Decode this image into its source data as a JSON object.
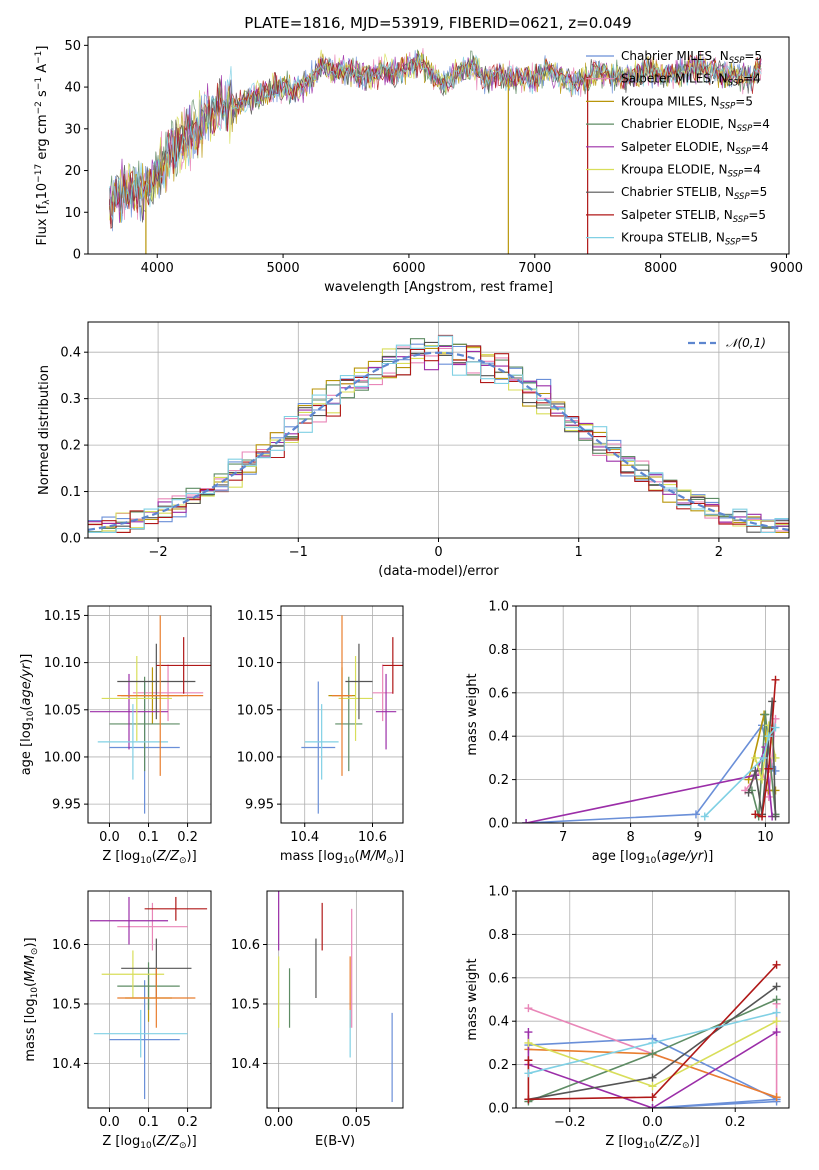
{
  "figure_title": "PLATE=1816, MJD=53919, FIBERID=0621, z=0.049",
  "palette": [
    "#6a8fd8",
    "#e986b8",
    "#b8960a",
    "#5e8c64",
    "#9b2ea8",
    "#d8de5a",
    "#555555",
    "#b01818",
    "#80d0e4",
    "#e87e2e"
  ],
  "chart_data": [
    {
      "id": "spectrum",
      "type": "line",
      "title": "PLATE=1816, MJD=53919, FIBERID=0621, z=0.049",
      "xlabel": "wavelength [Angstrom, rest frame]",
      "ylabel": "Flux [f_λ 10^-17 erg cm^-2 s^-1 A^-1]",
      "xlim": [
        3450,
        9020
      ],
      "ylim": [
        0,
        52
      ],
      "xticks": [
        4000,
        5000,
        6000,
        7000,
        8000,
        9000
      ],
      "yticks": [
        0,
        10,
        20,
        30,
        40,
        50
      ],
      "grid": false,
      "legend_position": "right",
      "x": [
        3620,
        3700,
        3800,
        3900,
        4000,
        4100,
        4200,
        4300,
        4400,
        4500,
        4600,
        4700,
        4800,
        4900,
        5000,
        5100,
        5200,
        5300,
        5400,
        5500,
        5600,
        5700,
        5800,
        5900,
        6000,
        6100,
        6200,
        6300,
        6400,
        6500,
        6600,
        6700,
        6800,
        6900,
        7000,
        7100,
        7200,
        7300,
        7400,
        7500,
        7600,
        7700,
        7800,
        7900,
        8000,
        8100,
        8200,
        8300,
        8400,
        8500,
        8600,
        8700,
        8800
      ],
      "y": [
        12,
        14,
        15,
        15,
        19,
        23,
        27,
        29,
        33,
        35,
        35,
        37,
        38,
        39,
        40,
        39,
        41,
        45,
        44,
        44,
        43,
        43,
        44,
        43,
        45,
        46,
        42,
        41,
        44,
        45,
        42,
        43,
        42,
        42,
        42,
        44,
        43,
        41,
        42,
        44,
        43,
        42,
        43,
        44,
        43,
        43,
        44,
        45,
        44,
        43,
        43,
        42,
        45
      ],
      "series": [
        {
          "name": "Chabrier MILES, N_SSP=5",
          "color": "#6a8fd8"
        },
        {
          "name": "Salpeter MILES, N_SSP=4",
          "color": "#e986b8"
        },
        {
          "name": "Kroupa MILES, N_SSP=5",
          "color": "#b8960a"
        },
        {
          "name": "Chabrier ELODIE, N_SSP=4",
          "color": "#5e8c64"
        },
        {
          "name": "Salpeter ELODIE, N_SSP=4",
          "color": "#9b2ea8"
        },
        {
          "name": "Kroupa ELODIE, N_SSP=4",
          "color": "#d8de5a"
        },
        {
          "name": "Chabrier STELIB, N_SSP=5",
          "color": "#555555"
        },
        {
          "name": "Salpeter STELIB, N_SSP=5",
          "color": "#b01818"
        },
        {
          "name": "Kroupa STELIB, N_SSP=5",
          "color": "#80d0e4"
        }
      ],
      "dropouts": [
        {
          "x": 3910,
          "color": "#b8960a"
        },
        {
          "x": 6790,
          "color": "#b8960a"
        },
        {
          "x": 7420,
          "color": "#b01818"
        }
      ]
    },
    {
      "id": "residuals",
      "type": "step",
      "xlabel": "(data-model)/error",
      "ylabel": "Normed distribution",
      "xlim": [
        -2.5,
        2.5
      ],
      "ylim": [
        0,
        0.465
      ],
      "xticks": [
        -2,
        -1,
        0,
        1,
        2
      ],
      "yticks": [
        0.0,
        0.1,
        0.2,
        0.3,
        0.4
      ],
      "grid": true,
      "legend_position": "top-right",
      "gaussian": {
        "name": "𝒩(0,1)",
        "mean": 0,
        "sigma": 1,
        "color": "#5d86cf"
      },
      "bin_width": 0.1,
      "series_colors": [
        "#6a8fd8",
        "#e986b8",
        "#b8960a",
        "#5e8c64",
        "#9b2ea8",
        "#d8de5a",
        "#555555",
        "#b01818",
        "#80d0e4"
      ]
    },
    {
      "id": "age-vs-z",
      "type": "errorbar",
      "xlabel": "Z [log10(Z/Z⊙)]",
      "ylabel": "age  [log10(age/yr)]",
      "xlim": [
        -0.055,
        0.26
      ],
      "ylim": [
        9.93,
        10.16
      ],
      "xticks": [
        0.0,
        0.1,
        0.2
      ],
      "yticks": [
        9.95,
        10.0,
        10.05,
        10.1,
        10.15
      ],
      "grid": true,
      "points": [
        {
          "x": 0.09,
          "xerr": 0.09,
          "y": 10.01,
          "yerr": 0.07,
          "color": "#6a8fd8"
        },
        {
          "x": 0.15,
          "xerr": 0.09,
          "y": 10.068,
          "yerr": 0.03,
          "color": "#e986b8"
        },
        {
          "x": 0.11,
          "xerr": 0.08,
          "y": 10.065,
          "yerr": 0.03,
          "color": "#b8960a"
        },
        {
          "x": 0.09,
          "xerr": 0.09,
          "y": 10.035,
          "yerr": 0.05,
          "color": "#5e8c64"
        },
        {
          "x": 0.05,
          "xerr": 0.1,
          "y": 10.048,
          "yerr": 0.04,
          "color": "#9b2ea8"
        },
        {
          "x": 0.07,
          "xerr": 0.09,
          "y": 10.062,
          "yerr": 0.045,
          "color": "#d8de5a"
        },
        {
          "x": 0.12,
          "xerr": 0.1,
          "y": 10.08,
          "yerr": 0.04,
          "color": "#555555"
        },
        {
          "x": 0.19,
          "xerr": 0.07,
          "y": 10.097,
          "yerr": 0.03,
          "color": "#b01818"
        },
        {
          "x": 0.06,
          "xerr": 0.09,
          "y": 10.016,
          "yerr": 0.04,
          "color": "#80d0e4"
        },
        {
          "x": 0.13,
          "xerr": 0.11,
          "y": 10.065,
          "yerr": 0.085,
          "color": "#e87e2e"
        }
      ]
    },
    {
      "id": "age-vs-mass",
      "type": "errorbar",
      "xlabel": "mass [log10(M/M⊙)]",
      "ylabel": "",
      "xlim": [
        10.33,
        10.69
      ],
      "ylim": [
        9.93,
        10.16
      ],
      "xticks": [
        10.4,
        10.6
      ],
      "yticks": [
        9.95,
        10.0,
        10.05,
        10.1,
        10.15
      ],
      "grid": true,
      "points": [
        {
          "x": 10.44,
          "xerr": 0.05,
          "y": 10.01,
          "yerr": 0.07,
          "color": "#6a8fd8"
        },
        {
          "x": 10.63,
          "xerr": 0.03,
          "y": 10.068,
          "yerr": 0.03,
          "color": "#e986b8"
        },
        {
          "x": 10.51,
          "xerr": 0.04,
          "y": 10.065,
          "yerr": 0.03,
          "color": "#b8960a"
        },
        {
          "x": 10.53,
          "xerr": 0.04,
          "y": 10.035,
          "yerr": 0.05,
          "color": "#5e8c64"
        },
        {
          "x": 10.64,
          "xerr": 0.03,
          "y": 10.048,
          "yerr": 0.04,
          "color": "#9b2ea8"
        },
        {
          "x": 10.55,
          "xerr": 0.05,
          "y": 10.062,
          "yerr": 0.045,
          "color": "#d8de5a"
        },
        {
          "x": 10.56,
          "xerr": 0.04,
          "y": 10.08,
          "yerr": 0.04,
          "color": "#555555"
        },
        {
          "x": 10.66,
          "xerr": 0.03,
          "y": 10.097,
          "yerr": 0.03,
          "color": "#b01818"
        },
        {
          "x": 10.45,
          "xerr": 0.05,
          "y": 10.016,
          "yerr": 0.04,
          "color": "#80d0e4"
        },
        {
          "x": 10.51,
          "xerr": 0.03,
          "y": 10.065,
          "yerr": 0.085,
          "color": "#e87e2e"
        }
      ]
    },
    {
      "id": "weight-vs-age",
      "type": "line",
      "xlabel": "age  [log10(age/yr)]",
      "ylabel": "mass weight",
      "xlim": [
        6.3,
        10.35
      ],
      "ylim": [
        0,
        1
      ],
      "xticks": [
        7,
        8,
        9,
        10
      ],
      "yticks": [
        0.0,
        0.2,
        0.4,
        0.6,
        0.8,
        1.0
      ],
      "grid": true,
      "series": [
        {
          "color": "#6a8fd8",
          "x": [
            6.45,
            8.97,
            9.95,
            10.1,
            10.15
          ],
          "y": [
            0.0,
            0.04,
            0.45,
            0.26,
            0.24
          ]
        },
        {
          "color": "#e986b8",
          "x": [
            9.7,
            9.95,
            10.05,
            10.15
          ],
          "y": [
            0.15,
            0.25,
            0.12,
            0.48
          ]
        },
        {
          "color": "#b8960a",
          "x": [
            9.75,
            9.98,
            10.05,
            10.15
          ],
          "y": [
            0.2,
            0.5,
            0.15,
            0.15
          ]
        },
        {
          "color": "#5e8c64",
          "x": [
            9.8,
            9.9,
            10.0,
            10.15
          ],
          "y": [
            0.15,
            0.03,
            0.5,
            0.04
          ]
        },
        {
          "color": "#9b2ea8",
          "x": [
            6.45,
            9.85,
            10.0,
            10.1
          ],
          "y": [
            0.0,
            0.22,
            0.35,
            0.03
          ]
        },
        {
          "color": "#d8de5a",
          "x": [
            9.85,
            9.95,
            10.05,
            10.15
          ],
          "y": [
            0.3,
            0.2,
            0.45,
            0.3
          ]
        },
        {
          "color": "#555555",
          "x": [
            9.75,
            9.85,
            9.95,
            10.1,
            10.15
          ],
          "y": [
            0.14,
            0.24,
            0.04,
            0.56,
            0.03
          ]
        },
        {
          "color": "#b01818",
          "x": [
            9.85,
            9.95,
            10.05,
            10.15
          ],
          "y": [
            0.04,
            0.03,
            0.25,
            0.66
          ]
        },
        {
          "color": "#80d0e4",
          "x": [
            9.1,
            9.97,
            10.05,
            10.15
          ],
          "y": [
            0.03,
            0.3,
            0.4,
            0.44
          ]
        }
      ]
    },
    {
      "id": "mass-vs-z",
      "type": "errorbar",
      "xlabel": "Z [log10(Z/Z⊙)]",
      "ylabel": "mass [log10(M/M⊙)]",
      "xlim": [
        -0.055,
        0.26
      ],
      "ylim": [
        10.325,
        10.69
      ],
      "xticks": [
        0.0,
        0.1,
        0.2
      ],
      "yticks": [
        10.4,
        10.5,
        10.6
      ],
      "grid": true,
      "points": [
        {
          "x": 0.09,
          "xerr": 0.09,
          "y": 10.44,
          "yerr": 0.1,
          "color": "#6a8fd8"
        },
        {
          "x": 0.11,
          "xerr": 0.09,
          "y": 10.63,
          "yerr": 0.04,
          "color": "#e986b8"
        },
        {
          "x": 0.1,
          "xerr": 0.06,
          "y": 10.51,
          "yerr": 0.04,
          "color": "#b8960a"
        },
        {
          "x": 0.1,
          "xerr": 0.08,
          "y": 10.53,
          "yerr": 0.04,
          "color": "#5e8c64"
        },
        {
          "x": 0.05,
          "xerr": 0.1,
          "y": 10.64,
          "yerr": 0.04,
          "color": "#9b2ea8"
        },
        {
          "x": 0.06,
          "xerr": 0.08,
          "y": 10.55,
          "yerr": 0.04,
          "color": "#d8de5a"
        },
        {
          "x": 0.12,
          "xerr": 0.09,
          "y": 10.56,
          "yerr": 0.05,
          "color": "#555555"
        },
        {
          "x": 0.17,
          "xerr": 0.08,
          "y": 10.66,
          "yerr": 0.02,
          "color": "#b01818"
        },
        {
          "x": 0.08,
          "xerr": 0.12,
          "y": 10.45,
          "yerr": 0.04,
          "color": "#80d0e4"
        },
        {
          "x": 0.12,
          "xerr": 0.1,
          "y": 10.51,
          "yerr": 0.05,
          "color": "#e87e2e"
        }
      ]
    },
    {
      "id": "mass-vs-ebv",
      "type": "errorbar",
      "xlabel": "E(B-V)",
      "ylabel": "",
      "xlim": [
        -0.0075,
        0.08
      ],
      "ylim": [
        10.325,
        10.69
      ],
      "xticks": [
        0.0,
        0.05
      ],
      "yticks": [
        10.4,
        10.5,
        10.6
      ],
      "grid": true,
      "points": [
        {
          "x": 0.073,
          "y": 10.41,
          "yerr": 0.075,
          "color": "#6a8fd8"
        },
        {
          "x": 0.047,
          "y": 10.56,
          "yerr": 0.1,
          "color": "#e986b8"
        },
        {
          "x": 0.046,
          "y": 10.52,
          "yerr": 0.06,
          "color": "#e87e2e"
        },
        {
          "x": 0.007,
          "y": 10.51,
          "yerr": 0.05,
          "color": "#5e8c64"
        },
        {
          "x": 0.0,
          "y": 10.64,
          "yerr": 0.05,
          "color": "#9b2ea8"
        },
        {
          "x": 0.0,
          "y": 10.52,
          "yerr": 0.06,
          "color": "#d8de5a"
        },
        {
          "x": 0.024,
          "y": 10.56,
          "yerr": 0.05,
          "color": "#555555"
        },
        {
          "x": 0.028,
          "y": 10.63,
          "yerr": 0.04,
          "color": "#b01818"
        },
        {
          "x": 0.046,
          "y": 10.45,
          "yerr": 0.04,
          "color": "#80d0e4"
        }
      ]
    },
    {
      "id": "weight-vs-z",
      "type": "line",
      "xlabel": "Z [log10(Z/Z⊙)]",
      "ylabel": "mass weight",
      "xlim": [
        -0.33,
        0.33
      ],
      "ylim": [
        0,
        1
      ],
      "xticks": [
        -0.2,
        0.0,
        0.2
      ],
      "yticks": [
        0.0,
        0.2,
        0.4,
        0.6,
        0.8,
        1.0
      ],
      "grid": true,
      "series": [
        {
          "color": "#6a8fd8",
          "x": [
            -0.3,
            0.0,
            0.3,
            0.0,
            0.3
          ],
          "y": [
            0.29,
            0.32,
            0.04,
            0.0,
            0.03
          ]
        },
        {
          "color": "#e986b8",
          "x": [
            -0.3,
            0.0,
            0.3,
            0.3
          ],
          "y": [
            0.46,
            0.25,
            0.05,
            0.48
          ]
        },
        {
          "color": "#e87e2e",
          "x": [
            -0.3,
            0.0,
            0.3
          ],
          "y": [
            0.27,
            0.25,
            0.05
          ]
        },
        {
          "color": "#5e8c64",
          "x": [
            -0.3,
            0.0,
            0.3
          ],
          "y": [
            0.03,
            0.25,
            0.5
          ]
        },
        {
          "color": "#9b2ea8",
          "x": [
            -0.3,
            -0.3,
            0.0,
            0.3
          ],
          "y": [
            0.35,
            0.2,
            0.0,
            0.35
          ]
        },
        {
          "color": "#d8de5a",
          "x": [
            -0.3,
            0.0,
            0.3
          ],
          "y": [
            0.3,
            0.1,
            0.4
          ]
        },
        {
          "color": "#555555",
          "x": [
            -0.3,
            0.0,
            0.3
          ],
          "y": [
            0.04,
            0.14,
            0.56
          ]
        },
        {
          "color": "#b01818",
          "x": [
            -0.3,
            -0.3,
            0.0,
            0.3
          ],
          "y": [
            0.22,
            0.04,
            0.05,
            0.66
          ]
        },
        {
          "color": "#80d0e4",
          "x": [
            -0.3,
            0.0,
            0.3
          ],
          "y": [
            0.16,
            0.3,
            0.44
          ]
        }
      ]
    }
  ]
}
